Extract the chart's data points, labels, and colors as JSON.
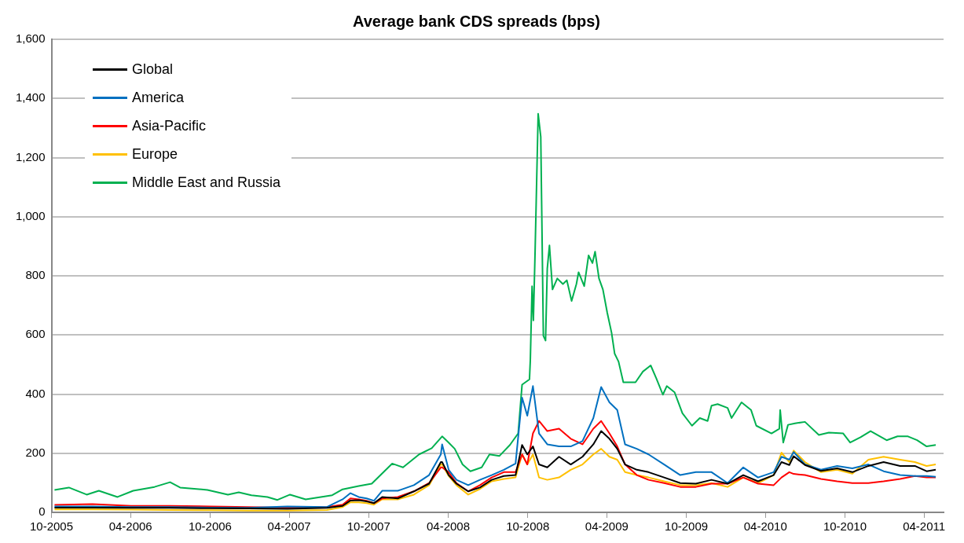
{
  "chart_data": {
    "type": "line",
    "title": "Average bank CDS spreads (bps)",
    "xlim": [
      "2005-10-01",
      "2011-05-16"
    ],
    "xticks": [
      {
        "value": "2005-10-01",
        "label": "10-2005"
      },
      {
        "value": "2006-04-01",
        "label": "04-2006"
      },
      {
        "value": "2006-10-01",
        "label": "10-2006"
      },
      {
        "value": "2007-04-01",
        "label": "04-2007"
      },
      {
        "value": "2007-10-01",
        "label": "10-2007"
      },
      {
        "value": "2008-04-01",
        "label": "04-2008"
      },
      {
        "value": "2008-10-01",
        "label": "10-2008"
      },
      {
        "value": "2009-04-01",
        "label": "04-2009"
      },
      {
        "value": "2009-10-01",
        "label": "10-2009"
      },
      {
        "value": "2010-04-01",
        "label": "04-2010"
      },
      {
        "value": "2010-10-01",
        "label": "10-2010"
      },
      {
        "value": "2011-04-01",
        "label": "04-2011"
      }
    ],
    "ylim": [
      0,
      1600
    ],
    "yticks": [
      0,
      200,
      400,
      600,
      800,
      {
        "value": 1000,
        "label": "1,000"
      },
      {
        "value": 1200,
        "label": "1,200"
      },
      {
        "value": 1400,
        "label": "1,400"
      },
      {
        "value": 1600,
        "label": "1,600"
      }
    ],
    "grid": "y",
    "legend": "top left",
    "marker": "none",
    "line_style": "solid",
    "x": [
      "2005-10-08",
      "2006-01-03",
      "2006-04-02",
      "2006-07-01",
      "2006-09-30",
      "2006-12-29",
      "2007-03-28",
      "2007-06-27",
      "2007-08-02",
      "2007-08-20",
      "2007-09-08",
      "2007-09-26",
      "2007-10-13",
      "2007-11-01",
      "2007-12-07",
      "2008-01-13",
      "2008-02-17",
      "2008-03-15",
      "2008-03-18",
      "2008-04-02",
      "2008-04-20",
      "2008-05-17",
      "2008-06-13",
      "2008-07-10",
      "2008-08-07",
      "2008-09-03",
      "2008-09-18",
      "2008-09-30",
      "2008-10-13",
      "2008-10-27",
      "2008-11-15",
      "2008-12-12",
      "2009-01-08",
      "2009-02-04",
      "2009-03-01",
      "2009-03-19",
      "2009-04-07",
      "2009-04-25",
      "2009-05-13",
      "2009-06-09",
      "2009-07-06",
      "2009-08-11",
      "2009-09-17",
      "2009-10-23",
      "2009-11-28",
      "2010-01-04",
      "2010-02-09",
      "2010-03-15",
      "2010-04-20",
      "2010-05-08",
      "2010-05-26",
      "2010-06-05",
      "2010-07-01",
      "2010-08-07",
      "2010-09-13",
      "2010-10-18",
      "2010-11-24",
      "2010-12-29",
      "2011-02-05",
      "2011-03-11",
      "2011-04-07",
      "2011-04-28"
    ],
    "series": [
      {
        "name": "Global",
        "color": "#000000",
        "values": [
          16,
          16,
          15,
          15,
          14,
          13,
          12,
          15,
          22,
          40,
          41,
          37,
          31,
          52,
          47,
          71,
          97,
          170,
          170,
          126,
          97,
          71,
          84,
          110,
          123,
          126,
          228,
          196,
          223,
          162,
          152,
          188,
          162,
          188,
          230,
          275,
          249,
          215,
          162,
          144,
          136,
          118,
          99,
          97,
          110,
          97,
          126,
          105,
          126,
          170,
          160,
          190,
          160,
          140,
          149,
          136,
          157,
          170,
          157,
          157,
          139,
          144
        ]
      },
      {
        "name": "America",
        "color": "#0070c0",
        "values": [
          20,
          20,
          18,
          18,
          16,
          15,
          20,
          18,
          44,
          65,
          52,
          47,
          39,
          73,
          73,
          92,
          126,
          196,
          230,
          144,
          110,
          92,
          110,
          126,
          144,
          165,
          388,
          327,
          427,
          267,
          230,
          223,
          223,
          241,
          319,
          424,
          372,
          346,
          230,
          215,
          196,
          162,
          126,
          136,
          136,
          99,
          152,
          118,
          136,
          188,
          178,
          204,
          162,
          144,
          157,
          149,
          162,
          139,
          126,
          123,
          123,
          120
        ]
      },
      {
        "name": "Asia-Pacific",
        "color": "#ff0000",
        "values": [
          25,
          28,
          22,
          22,
          20,
          18,
          16,
          18,
          26,
          47,
          44,
          39,
          31,
          47,
          52,
          71,
          99,
          152,
          152,
          136,
          99,
          71,
          92,
          118,
          136,
          136,
          196,
          162,
          267,
          309,
          275,
          283,
          249,
          230,
          283,
          309,
          267,
          223,
          162,
          126,
          110,
          99,
          86,
          86,
          97,
          97,
          118,
          97,
          92,
          118,
          136,
          130,
          126,
          113,
          105,
          99,
          99,
          105,
          113,
          123,
          118,
          118
        ]
      },
      {
        "name": "Europe",
        "color": "#ffc000",
        "values": [
          10,
          10,
          9,
          8,
          7,
          6,
          6,
          8,
          18,
          34,
          34,
          31,
          26,
          44,
          44,
          60,
          92,
          162,
          162,
          123,
          92,
          60,
          79,
          105,
          113,
          118,
          196,
          162,
          196,
          118,
          110,
          118,
          144,
          162,
          196,
          215,
          188,
          178,
          136,
          126,
          118,
          105,
          92,
          92,
          99,
          86,
          118,
          99,
          126,
          202,
          170,
          209,
          170,
          136,
          144,
          131,
          178,
          188,
          178,
          170,
          157,
          162
        ]
      },
      {
        "name": "Middle East and Russia",
        "color": "#00b050",
        "x": [
          "2005-10-08",
          "2005-11-10",
          "2005-12-21",
          "2006-01-18",
          "2006-03-02",
          "2006-04-07",
          "2006-05-26",
          "2006-07-01",
          "2006-07-24",
          "2006-09-25",
          "2006-11-11",
          "2006-12-06",
          "2007-01-04",
          "2007-02-10",
          "2007-03-05",
          "2007-04-03",
          "2007-05-09",
          "2007-07-09",
          "2007-08-02",
          "2007-09-08",
          "2007-10-08",
          "2007-11-24",
          "2007-12-19",
          "2008-01-25",
          "2008-02-23",
          "2008-03-18",
          "2008-04-02",
          "2008-04-16",
          "2008-05-04",
          "2008-05-22",
          "2008-06-17",
          "2008-07-05",
          "2008-07-28",
          "2008-08-21",
          "2008-09-09",
          "2008-09-18",
          "2008-10-05",
          "2008-10-07",
          "2008-10-11",
          "2008-10-14",
          "2008-10-18",
          "2008-10-25",
          "2008-10-31",
          "2008-11-06",
          "2008-11-11",
          "2008-11-15",
          "2008-11-20",
          "2008-11-27",
          "2008-12-08",
          "2008-12-21",
          "2008-12-30",
          "2009-01-10",
          "2009-01-21",
          "2009-01-26",
          "2009-02-08",
          "2009-02-18",
          "2009-02-27",
          "2009-03-05",
          "2009-03-14",
          "2009-03-23",
          "2009-04-02",
          "2009-04-12",
          "2009-04-19",
          "2009-04-28",
          "2009-05-09",
          "2009-06-06",
          "2009-06-23",
          "2009-07-11",
          "2009-07-24",
          "2009-08-08",
          "2009-08-17",
          "2009-09-04",
          "2009-09-22",
          "2009-10-14",
          "2009-11-01",
          "2009-11-19",
          "2009-11-28",
          "2009-12-12",
          "2010-01-04",
          "2010-01-13",
          "2010-02-05",
          "2010-02-27",
          "2010-03-11",
          "2010-04-15",
          "2010-05-03",
          "2010-05-05",
          "2010-05-12",
          "2010-05-23",
          "2010-06-08",
          "2010-07-01",
          "2010-08-02",
          "2010-08-25",
          "2010-09-27",
          "2010-10-13",
          "2010-11-06",
          "2010-11-29",
          "2011-01-05",
          "2011-01-30",
          "2011-02-23",
          "2011-03-16",
          "2011-04-07",
          "2011-04-28"
        ],
        "values": [
          76,
          84,
          60,
          73,
          52,
          73,
          86,
          102,
          84,
          76,
          60,
          68,
          58,
          52,
          42,
          60,
          44,
          58,
          78,
          89,
          97,
          165,
          152,
          196,
          217,
          257,
          236,
          215,
          162,
          139,
          152,
          196,
          191,
          228,
          267,
          432,
          450,
          516,
          765,
          649,
          885,
          1348,
          1270,
          597,
          581,
          825,
          903,
          754,
          791,
          772,
          785,
          715,
          772,
          812,
          765,
          869,
          843,
          882,
          791,
          754,
          675,
          607,
          537,
          510,
          440,
          440,
          476,
          497,
          453,
          398,
          427,
          406,
          335,
          293,
          319,
          309,
          361,
          366,
          353,
          319,
          372,
          346,
          293,
          267,
          283,
          346,
          236,
          296,
          301,
          306,
          262,
          270,
          267,
          236,
          254,
          275,
          244,
          257,
          257,
          244,
          223,
          228
        ]
      }
    ]
  }
}
